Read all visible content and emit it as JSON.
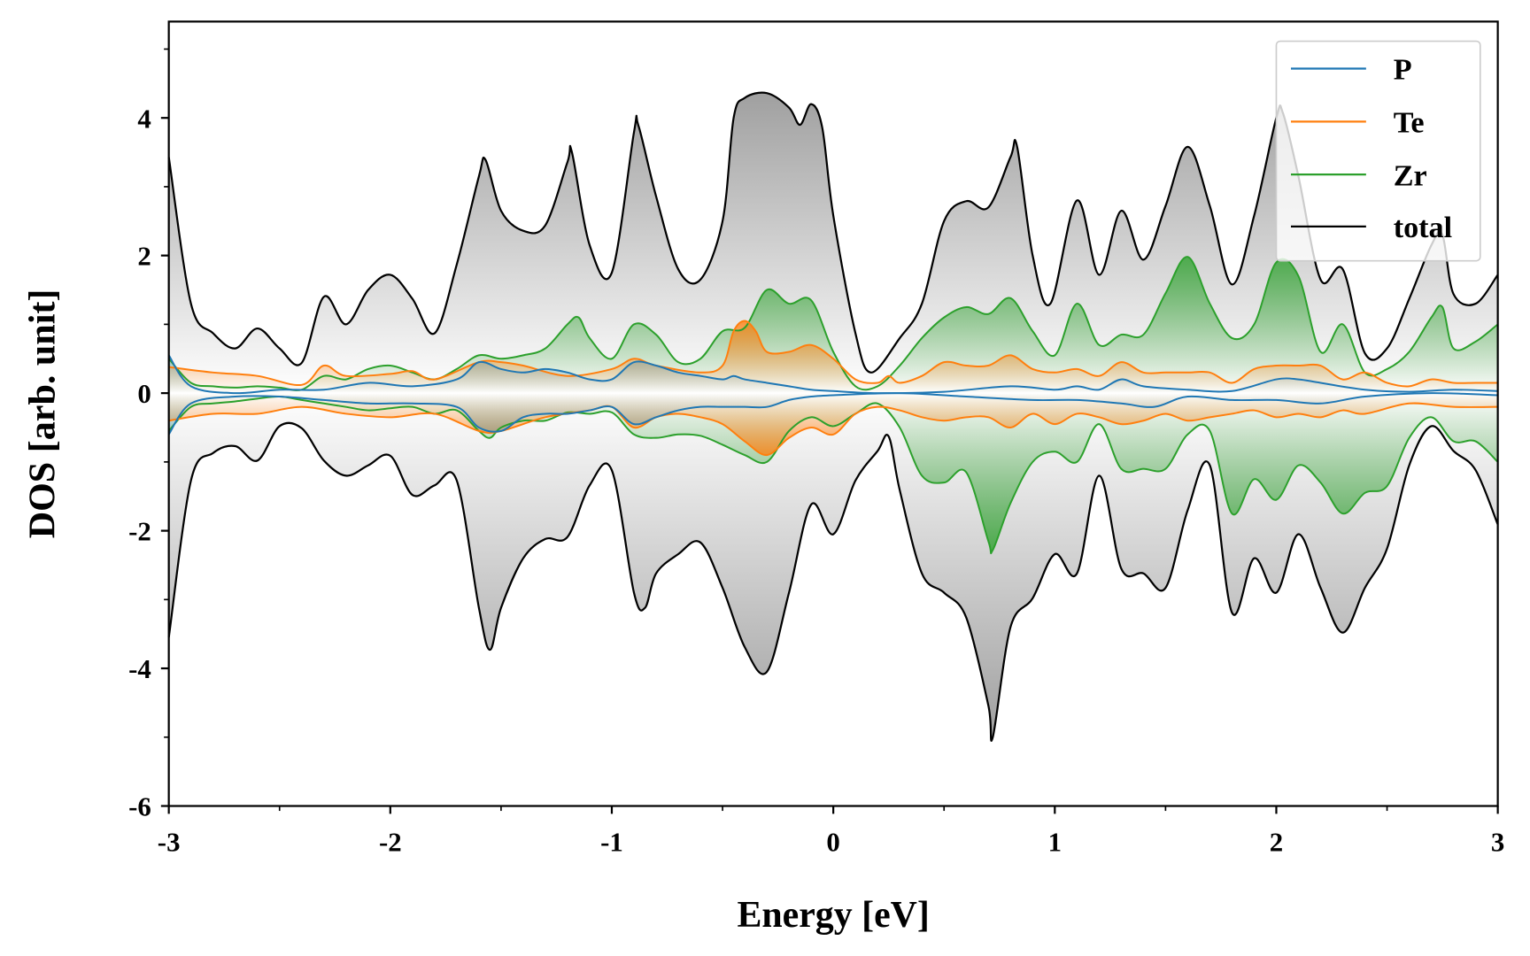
{
  "chart_data": {
    "type": "line",
    "title": "",
    "xlabel": "Energy [eV]",
    "ylabel": "DOS [arb. unit]",
    "xlim": [
      -3,
      3
    ],
    "ylim": [
      -6,
      5.4
    ],
    "xticks": [
      "-3",
      "-2",
      "-1",
      "0",
      "1",
      "2",
      "3"
    ],
    "xtick_values": [
      -3,
      -2,
      -1,
      0,
      1,
      2,
      3
    ],
    "yticks": [
      "-6",
      "-4",
      "-2",
      "0",
      "2",
      "4"
    ],
    "ytick_values": [
      -6,
      -4,
      -2,
      0,
      2,
      4
    ],
    "grid": false,
    "legend_position": "top-right",
    "series": [
      {
        "name": "total",
        "color": "#000000",
        "fill": "#808080",
        "up": {
          "x": [
            -3,
            -2.9,
            -2.8,
            -2.7,
            -2.6,
            -2.5,
            -2.4,
            -2.3,
            -2.2,
            -2.1,
            -2.0,
            -1.9,
            -1.8,
            -1.7,
            -1.6,
            -1.57,
            -1.5,
            -1.4,
            -1.3,
            -1.2,
            -1.18,
            -1.1,
            -1.0,
            -0.9,
            -0.88,
            -0.8,
            -0.7,
            -0.6,
            -0.5,
            -0.45,
            -0.4,
            -0.3,
            -0.2,
            -0.15,
            -0.1,
            -0.05,
            0.0,
            0.1,
            0.17,
            0.3,
            0.4,
            0.5,
            0.6,
            0.7,
            0.8,
            0.83,
            0.9,
            0.98,
            1.1,
            1.2,
            1.3,
            1.4,
            1.5,
            1.6,
            1.7,
            1.8,
            1.9,
            2.0,
            2.03,
            2.1,
            2.2,
            2.3,
            2.4,
            2.5,
            2.6,
            2.7,
            2.75,
            2.8,
            2.9,
            3.0
          ],
          "y": [
            3.43,
            1.3,
            0.87,
            0.65,
            0.94,
            0.65,
            0.44,
            1.4,
            1.0,
            1.5,
            1.72,
            1.37,
            0.87,
            1.87,
            3.15,
            3.39,
            2.65,
            2.36,
            2.44,
            3.36,
            3.5,
            2.15,
            1.75,
            3.79,
            3.89,
            2.86,
            1.8,
            1.65,
            2.5,
            4.0,
            4.29,
            4.36,
            4.15,
            3.9,
            4.2,
            3.86,
            2.58,
            0.87,
            0.3,
            0.8,
            1.3,
            2.5,
            2.79,
            2.7,
            3.43,
            3.58,
            2.0,
            1.3,
            2.8,
            1.72,
            2.65,
            1.94,
            2.72,
            3.58,
            2.72,
            1.58,
            2.58,
            4.0,
            4.07,
            3.15,
            1.65,
            1.8,
            0.58,
            0.65,
            1.37,
            2.15,
            2.3,
            1.44,
            1.3,
            1.72
          ]
        },
        "down": {
          "x": [
            -3,
            -2.9,
            -2.8,
            -2.7,
            -2.6,
            -2.5,
            -2.4,
            -2.3,
            -2.2,
            -2.1,
            -2.0,
            -1.9,
            -1.8,
            -1.7,
            -1.6,
            -1.55,
            -1.5,
            -1.4,
            -1.3,
            -1.2,
            -1.1,
            -1.0,
            -0.9,
            -0.85,
            -0.8,
            -0.7,
            -0.6,
            -0.5,
            -0.4,
            -0.3,
            -0.2,
            -0.1,
            0.0,
            0.1,
            0.2,
            0.25,
            0.3,
            0.4,
            0.5,
            0.6,
            0.7,
            0.72,
            0.8,
            0.9,
            1.0,
            1.1,
            1.2,
            1.3,
            1.4,
            1.5,
            1.6,
            1.7,
            1.8,
            1.9,
            2.0,
            2.1,
            2.2,
            2.3,
            2.4,
            2.5,
            2.6,
            2.7,
            2.8,
            2.9,
            3.0
          ],
          "y": [
            -3.55,
            -1.27,
            -0.87,
            -0.77,
            -0.98,
            -0.48,
            -0.51,
            -0.98,
            -1.2,
            -1.05,
            -0.91,
            -1.48,
            -1.34,
            -1.27,
            -3.12,
            -3.73,
            -3.12,
            -2.4,
            -2.12,
            -2.09,
            -1.34,
            -1.12,
            -2.9,
            -3.12,
            -2.62,
            -2.34,
            -2.17,
            -2.83,
            -3.69,
            -4.05,
            -2.9,
            -1.62,
            -2.05,
            -1.27,
            -0.84,
            -0.63,
            -1.41,
            -2.62,
            -2.9,
            -3.26,
            -4.54,
            -5.0,
            -3.4,
            -2.98,
            -2.34,
            -2.62,
            -1.2,
            -2.55,
            -2.62,
            -2.83,
            -1.7,
            -1.05,
            -3.19,
            -2.4,
            -2.9,
            -2.05,
            -2.83,
            -3.48,
            -2.83,
            -2.26,
            -1.05,
            -0.48,
            -0.84,
            -1.12,
            -1.91
          ]
        }
      },
      {
        "name": "Zr",
        "color": "#2ca02c",
        "fill": "#2ca02c",
        "up": {
          "x": [
            -3,
            -2.9,
            -2.8,
            -2.7,
            -2.6,
            -2.5,
            -2.4,
            -2.3,
            -2.2,
            -2.1,
            -2.0,
            -1.9,
            -1.8,
            -1.7,
            -1.6,
            -1.5,
            -1.4,
            -1.3,
            -1.2,
            -1.15,
            -1.1,
            -1.0,
            -0.9,
            -0.8,
            -0.7,
            -0.6,
            -0.5,
            -0.4,
            -0.3,
            -0.2,
            -0.1,
            0,
            0.1,
            0.2,
            0.3,
            0.4,
            0.5,
            0.6,
            0.7,
            0.8,
            0.9,
            1.0,
            1.1,
            1.2,
            1.3,
            1.4,
            1.5,
            1.6,
            1.7,
            1.8,
            1.9,
            2.0,
            2.1,
            2.2,
            2.3,
            2.4,
            2.5,
            2.6,
            2.7,
            2.75,
            2.8,
            2.9,
            3.0
          ],
          "y": [
            0.5,
            0.15,
            0.1,
            0.08,
            0.1,
            0.08,
            0.05,
            0.25,
            0.2,
            0.35,
            0.4,
            0.3,
            0.2,
            0.35,
            0.55,
            0.5,
            0.55,
            0.65,
            1.0,
            1.1,
            0.8,
            0.5,
            1.0,
            0.85,
            0.45,
            0.5,
            0.9,
            0.95,
            1.5,
            1.3,
            1.35,
            0.6,
            0.1,
            0.1,
            0.4,
            0.8,
            1.1,
            1.25,
            1.15,
            1.38,
            0.9,
            0.55,
            1.3,
            0.7,
            0.85,
            0.85,
            1.45,
            1.98,
            1.3,
            0.8,
            1.0,
            1.9,
            1.7,
            0.6,
            1.0,
            0.3,
            0.35,
            0.6,
            1.1,
            1.25,
            0.65,
            0.75,
            1.0
          ]
        },
        "down": {
          "x": [
            -3,
            -2.9,
            -2.8,
            -2.7,
            -2.6,
            -2.5,
            -2.4,
            -2.3,
            -2.2,
            -2.1,
            -2.0,
            -1.9,
            -1.8,
            -1.7,
            -1.6,
            -1.55,
            -1.5,
            -1.4,
            -1.3,
            -1.2,
            -1.1,
            -1.0,
            -0.9,
            -0.8,
            -0.7,
            -0.6,
            -0.5,
            -0.4,
            -0.3,
            -0.2,
            -0.1,
            0,
            0.1,
            0.2,
            0.3,
            0.4,
            0.5,
            0.6,
            0.7,
            0.72,
            0.8,
            0.9,
            1.0,
            1.1,
            1.2,
            1.3,
            1.4,
            1.5,
            1.6,
            1.7,
            1.8,
            1.9,
            2.0,
            2.1,
            2.2,
            2.3,
            2.4,
            2.5,
            2.6,
            2.7,
            2.8,
            2.9,
            3.0
          ],
          "y": [
            -0.55,
            -0.2,
            -0.15,
            -0.12,
            -0.08,
            -0.05,
            -0.1,
            -0.15,
            -0.2,
            -0.25,
            -0.22,
            -0.2,
            -0.3,
            -0.25,
            -0.55,
            -0.65,
            -0.5,
            -0.4,
            -0.4,
            -0.28,
            -0.3,
            -0.28,
            -0.6,
            -0.65,
            -0.6,
            -0.62,
            -0.75,
            -0.9,
            -1.0,
            -0.55,
            -0.35,
            -0.48,
            -0.3,
            -0.15,
            -0.5,
            -1.2,
            -1.3,
            -1.15,
            -2.15,
            -2.28,
            -1.6,
            -1.0,
            -0.85,
            -1.0,
            -0.45,
            -1.1,
            -1.1,
            -1.1,
            -0.6,
            -0.55,
            -1.75,
            -1.25,
            -1.55,
            -1.05,
            -1.3,
            -1.75,
            -1.45,
            -1.35,
            -0.65,
            -0.35,
            -0.7,
            -0.7,
            -1.0
          ]
        }
      },
      {
        "name": "Te",
        "color": "#ff7f0e",
        "fill": "#ff7f0e",
        "up": {
          "x": [
            -3,
            -2.8,
            -2.6,
            -2.4,
            -2.3,
            -2.2,
            -2.0,
            -1.9,
            -1.8,
            -1.6,
            -1.5,
            -1.4,
            -1.2,
            -1.0,
            -0.9,
            -0.8,
            -0.6,
            -0.5,
            -0.45,
            -0.4,
            -0.35,
            -0.3,
            -0.2,
            -0.1,
            0,
            0.1,
            0.2,
            0.25,
            0.3,
            0.4,
            0.5,
            0.6,
            0.7,
            0.8,
            0.9,
            1.0,
            1.1,
            1.2,
            1.3,
            1.4,
            1.5,
            1.6,
            1.7,
            1.8,
            1.9,
            2.0,
            2.1,
            2.2,
            2.3,
            2.4,
            2.5,
            2.6,
            2.7,
            2.8,
            2.9,
            3.0
          ],
          "y": [
            0.38,
            0.3,
            0.25,
            0.12,
            0.4,
            0.25,
            0.28,
            0.32,
            0.2,
            0.45,
            0.45,
            0.4,
            0.25,
            0.35,
            0.5,
            0.4,
            0.3,
            0.4,
            0.9,
            1.05,
            0.9,
            0.6,
            0.6,
            0.7,
            0.5,
            0.2,
            0.15,
            0.25,
            0.15,
            0.25,
            0.45,
            0.4,
            0.4,
            0.55,
            0.35,
            0.3,
            0.35,
            0.25,
            0.45,
            0.3,
            0.3,
            0.3,
            0.3,
            0.15,
            0.35,
            0.4,
            0.4,
            0.4,
            0.2,
            0.3,
            0.15,
            0.1,
            0.2,
            0.15,
            0.15,
            0.15
          ]
        },
        "down": {
          "x": [
            -3,
            -2.8,
            -2.6,
            -2.4,
            -2.2,
            -2.0,
            -1.8,
            -1.6,
            -1.5,
            -1.3,
            -1.1,
            -1.0,
            -0.9,
            -0.8,
            -0.7,
            -0.6,
            -0.5,
            -0.4,
            -0.3,
            -0.2,
            -0.1,
            0,
            0.1,
            0.2,
            0.3,
            0.4,
            0.5,
            0.6,
            0.7,
            0.8,
            0.9,
            1.0,
            1.1,
            1.2,
            1.3,
            1.4,
            1.5,
            1.6,
            1.7,
            1.8,
            1.9,
            2.0,
            2.1,
            2.2,
            2.3,
            2.4,
            2.6,
            2.8,
            3.0
          ],
          "y": [
            -0.4,
            -0.3,
            -0.3,
            -0.2,
            -0.3,
            -0.35,
            -0.3,
            -0.55,
            -0.55,
            -0.35,
            -0.25,
            -0.2,
            -0.5,
            -0.35,
            -0.3,
            -0.35,
            -0.45,
            -0.7,
            -0.9,
            -0.65,
            -0.5,
            -0.6,
            -0.3,
            -0.2,
            -0.25,
            -0.35,
            -0.4,
            -0.35,
            -0.35,
            -0.5,
            -0.3,
            -0.45,
            -0.3,
            -0.35,
            -0.45,
            -0.4,
            -0.3,
            -0.4,
            -0.35,
            -0.3,
            -0.25,
            -0.35,
            -0.3,
            -0.35,
            -0.25,
            -0.3,
            -0.15,
            -0.2,
            -0.2
          ]
        }
      },
      {
        "name": "P",
        "color": "#1f77b4",
        "fill": "#1f77b4",
        "up": {
          "x": [
            -3,
            -2.9,
            -2.7,
            -2.5,
            -2.3,
            -2.1,
            -1.9,
            -1.7,
            -1.6,
            -1.5,
            -1.4,
            -1.3,
            -1.2,
            -1.1,
            -1.0,
            -0.9,
            -0.8,
            -0.7,
            -0.6,
            -0.5,
            -0.45,
            -0.4,
            -0.3,
            -0.2,
            -0.1,
            0,
            0.2,
            0.5,
            0.8,
            1.0,
            1.1,
            1.2,
            1.3,
            1.4,
            1.6,
            1.8,
            2.0,
            2.1,
            2.2,
            2.4,
            2.6,
            2.8,
            3.0
          ],
          "y": [
            0.55,
            0.1,
            0.0,
            0.05,
            0.05,
            0.15,
            0.1,
            0.2,
            0.45,
            0.35,
            0.3,
            0.35,
            0.3,
            0.2,
            0.2,
            0.45,
            0.4,
            0.3,
            0.25,
            0.2,
            0.25,
            0.2,
            0.15,
            0.1,
            0.05,
            0.03,
            0.0,
            0.02,
            0.1,
            0.05,
            0.1,
            0.05,
            0.2,
            0.1,
            0.05,
            0.03,
            0.2,
            0.2,
            0.15,
            0.05,
            0.02,
            0.05,
            0.03
          ]
        },
        "down": {
          "x": [
            -3,
            -2.9,
            -2.7,
            -2.5,
            -2.3,
            -2.1,
            -1.9,
            -1.7,
            -1.6,
            -1.5,
            -1.4,
            -1.3,
            -1.2,
            -1.1,
            -1.0,
            -0.9,
            -0.8,
            -0.7,
            -0.6,
            -0.5,
            -0.4,
            -0.3,
            -0.2,
            -0.1,
            0,
            0.3,
            0.6,
            0.9,
            1.1,
            1.3,
            1.45,
            1.6,
            1.8,
            2.0,
            2.2,
            2.4,
            2.7,
            3.0
          ],
          "y": [
            -0.6,
            -0.15,
            -0.05,
            -0.05,
            -0.1,
            -0.15,
            -0.15,
            -0.2,
            -0.5,
            -0.55,
            -0.35,
            -0.3,
            -0.3,
            -0.25,
            -0.2,
            -0.45,
            -0.35,
            -0.25,
            -0.2,
            -0.2,
            -0.2,
            -0.2,
            -0.1,
            -0.05,
            -0.03,
            0,
            -0.05,
            -0.1,
            -0.1,
            -0.15,
            -0.2,
            -0.05,
            -0.1,
            -0.1,
            -0.15,
            -0.05,
            0,
            -0.03
          ]
        }
      }
    ],
    "legend": [
      "P",
      "Te",
      "Zr",
      "total"
    ]
  }
}
